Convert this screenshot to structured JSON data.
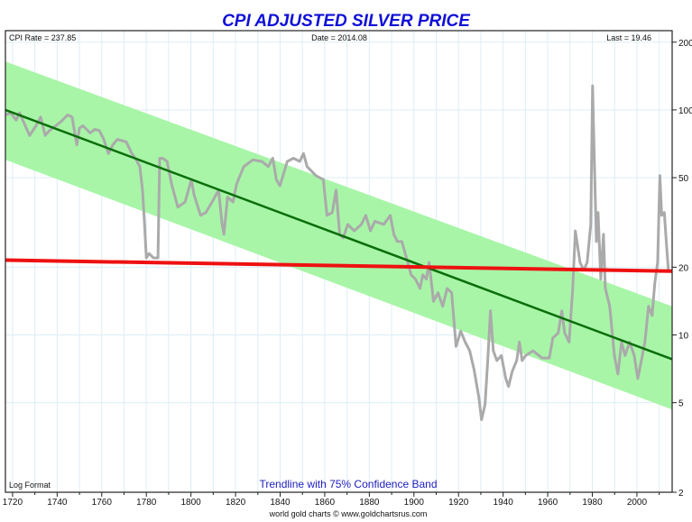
{
  "chart_data": {
    "type": "line",
    "title": "CPI ADJUSTED SILVER PRICE",
    "annotations": {
      "cpi_rate": "CPI Rate = 237.85",
      "date": "Date = 2014.08",
      "last": "Last = 19.46",
      "scale": "Log Format",
      "band_label": "Trendline with 75% Confidence Band",
      "credit": "world gold charts © www.goldchartsrus.com"
    },
    "xlabel": "",
    "ylabel": "",
    "y_scale": "log",
    "xlim": [
      1716.8,
      2015.8
    ],
    "ylim": [
      2,
      225
    ],
    "x_ticks": [
      1720,
      1740,
      1760,
      1780,
      1800,
      1820,
      1840,
      1860,
      1880,
      1900,
      1920,
      1940,
      1960,
      1980,
      2000
    ],
    "y_ticks": [
      200,
      100,
      50,
      20,
      10,
      5,
      2
    ],
    "grid": true,
    "colors": {
      "price": "#aaaaaa",
      "trend": "#0a6e0a",
      "band": "#a8f5a8",
      "flat": "#ee1111",
      "title": "#1010d8",
      "band_label": "#2020c0"
    },
    "trendline": {
      "x": [
        1716.8,
        2015.8
      ],
      "y": [
        100,
        7.8
      ]
    },
    "confidence_band": {
      "x": [
        1716.8,
        2015.8
      ],
      "upper": [
        164,
        13.4
      ],
      "lower": [
        60,
        4.66
      ]
    },
    "horizontal_line": {
      "x": [
        1716.8,
        2015.8
      ],
      "y": [
        21.5,
        19.2
      ]
    },
    "series": [
      {
        "name": "CPI adjusted silver price",
        "points": [
          [
            1716.8,
            95
          ],
          [
            1719.2,
            97
          ],
          [
            1721.6,
            90
          ],
          [
            1723.2,
            97
          ],
          [
            1725.7,
            85
          ],
          [
            1727.7,
            77
          ],
          [
            1730.5,
            85
          ],
          [
            1732.6,
            93
          ],
          [
            1734.6,
            77
          ],
          [
            1736.6,
            81
          ],
          [
            1739.4,
            85
          ],
          [
            1741.9,
            89
          ],
          [
            1744.7,
            95
          ],
          [
            1746.7,
            93
          ],
          [
            1748.8,
            70
          ],
          [
            1750,
            83
          ],
          [
            1751.6,
            85
          ],
          [
            1754.8,
            79
          ],
          [
            1756.9,
            82
          ],
          [
            1758.9,
            81
          ],
          [
            1760.9,
            74
          ],
          [
            1763,
            64
          ],
          [
            1765,
            70
          ],
          [
            1767,
            74
          ],
          [
            1771,
            72
          ],
          [
            1773.5,
            64
          ],
          [
            1775.1,
            61
          ],
          [
            1777.1,
            56
          ],
          [
            1778.3,
            44
          ],
          [
            1779.2,
            31
          ],
          [
            1780,
            22
          ],
          [
            1781.2,
            23
          ],
          [
            1783.2,
            22
          ],
          [
            1785.2,
            22
          ],
          [
            1786,
            61
          ],
          [
            1787.3,
            61
          ],
          [
            1789.3,
            59
          ],
          [
            1791.3,
            47
          ],
          [
            1794.1,
            37
          ],
          [
            1797.4,
            39
          ],
          [
            1800.2,
            49
          ],
          [
            1801.4,
            42
          ],
          [
            1804.3,
            34
          ],
          [
            1806.7,
            35
          ],
          [
            1809.5,
            39
          ],
          [
            1812.4,
            44
          ],
          [
            1814,
            31
          ],
          [
            1814.8,
            28
          ],
          [
            1816.4,
            41
          ],
          [
            1818.9,
            39
          ],
          [
            1820.5,
            47
          ],
          [
            1823.7,
            56
          ],
          [
            1827.8,
            60
          ],
          [
            1831.8,
            59
          ],
          [
            1834.7,
            56
          ],
          [
            1836.7,
            61
          ],
          [
            1838.3,
            49
          ],
          [
            1839.9,
            46
          ],
          [
            1843.2,
            59
          ],
          [
            1846,
            61
          ],
          [
            1848.8,
            59
          ],
          [
            1850.5,
            64
          ],
          [
            1852.1,
            56
          ],
          [
            1856.1,
            51
          ],
          [
            1859.4,
            49
          ],
          [
            1861,
            34
          ],
          [
            1863.4,
            35
          ],
          [
            1865.1,
            44
          ],
          [
            1866.7,
            28
          ],
          [
            1868.3,
            27
          ],
          [
            1870.3,
            31
          ],
          [
            1873.2,
            29
          ],
          [
            1876.4,
            31
          ],
          [
            1878.4,
            34
          ],
          [
            1880.5,
            29
          ],
          [
            1882.5,
            32
          ],
          [
            1886.5,
            31
          ],
          [
            1889.4,
            34
          ],
          [
            1891,
            28
          ],
          [
            1892.6,
            26
          ],
          [
            1894.6,
            26
          ],
          [
            1896.7,
            22
          ],
          [
            1898.7,
            18.5
          ],
          [
            1900.7,
            17.7
          ],
          [
            1902.7,
            16.1
          ],
          [
            1904,
            18.5
          ],
          [
            1905.6,
            17.7
          ],
          [
            1906.8,
            21
          ],
          [
            1908.8,
            14.1
          ],
          [
            1910.8,
            15.4
          ],
          [
            1912.9,
            13.4
          ],
          [
            1914.9,
            16.1
          ],
          [
            1916.9,
            15.4
          ],
          [
            1918.9,
            8.9
          ],
          [
            1921,
            10.4
          ],
          [
            1923,
            9.3
          ],
          [
            1925,
            8.5
          ],
          [
            1927,
            7.0
          ],
          [
            1929.1,
            5.3
          ],
          [
            1930.3,
            4.2
          ],
          [
            1931.9,
            4.9
          ],
          [
            1933.1,
            7.7
          ],
          [
            1934.3,
            12.8
          ],
          [
            1935.6,
            8.5
          ],
          [
            1937.2,
            7.7
          ],
          [
            1939.2,
            8.1
          ],
          [
            1941.2,
            6.4
          ],
          [
            1942.4,
            5.9
          ],
          [
            1944.1,
            6.9
          ],
          [
            1946.1,
            7.7
          ],
          [
            1947.3,
            9.3
          ],
          [
            1948.5,
            7.7
          ],
          [
            1950.1,
            8.1
          ],
          [
            1953.4,
            8.5
          ],
          [
            1957.4,
            7.9
          ],
          [
            1960.7,
            7.9
          ],
          [
            1962.3,
            9.7
          ],
          [
            1964.7,
            10.2
          ],
          [
            1966.3,
            12.8
          ],
          [
            1967.6,
            10.2
          ],
          [
            1969.6,
            9.3
          ],
          [
            1971.2,
            16.1
          ],
          [
            1972.4,
            29
          ],
          [
            1974.5,
            21
          ],
          [
            1976.1,
            19.4
          ],
          [
            1977.7,
            21
          ],
          [
            1979.3,
            31
          ],
          [
            1980.1,
            128
          ],
          [
            1980.9,
            61
          ],
          [
            1981.8,
            26
          ],
          [
            1982.6,
            35
          ],
          [
            1983.8,
            17.7
          ],
          [
            1985,
            28
          ],
          [
            1985.8,
            16.1
          ],
          [
            1987.8,
            13.4
          ],
          [
            1989.9,
            8.1
          ],
          [
            1991.5,
            6.7
          ],
          [
            1993.1,
            9.3
          ],
          [
            1994.7,
            8.1
          ],
          [
            1996.7,
            9.3
          ],
          [
            1998.8,
            8.1
          ],
          [
            2000.4,
            6.4
          ],
          [
            2002,
            7.7
          ],
          [
            2003.6,
            9.3
          ],
          [
            2005.2,
            13.4
          ],
          [
            2006.8,
            12.2
          ],
          [
            2008,
            16.9
          ],
          [
            2009.3,
            21
          ],
          [
            2010.3,
            51
          ],
          [
            2011.1,
            34
          ],
          [
            2012.3,
            35
          ],
          [
            2013.4,
            24
          ],
          [
            2014.1,
            19.46
          ]
        ]
      }
    ]
  }
}
